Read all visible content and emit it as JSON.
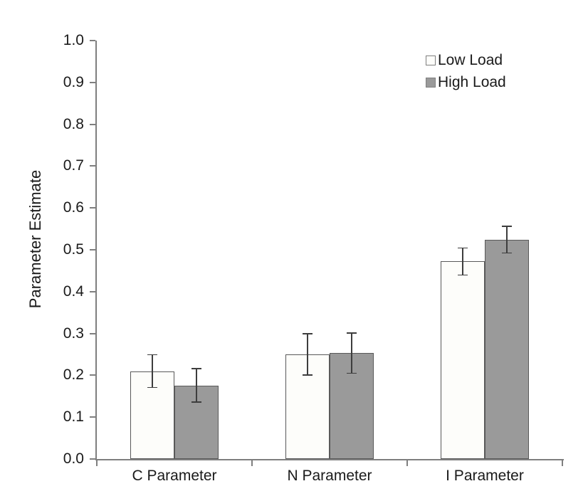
{
  "chart_data": {
    "type": "bar",
    "categories": [
      "C Parameter",
      "N Parameter",
      "I Parameter"
    ],
    "series": [
      {
        "name": "Low Load",
        "values": [
          0.21,
          0.25,
          0.472
        ],
        "errors": [
          0.039,
          0.049,
          0.032
        ],
        "fill": "#fdfdfa",
        "border": "#595959"
      },
      {
        "name": "High Load",
        "values": [
          0.176,
          0.253,
          0.524
        ],
        "errors": [
          0.04,
          0.048,
          0.032
        ],
        "fill": "#9a9a9a",
        "border": "#595959"
      }
    ],
    "ylabel": "Parameter Estimate",
    "xlabel": "",
    "ylim": [
      0.0,
      1.0
    ],
    "yticks": [
      0.0,
      0.1,
      0.2,
      0.3,
      0.4,
      0.5,
      0.6,
      0.7,
      0.8,
      0.9,
      1.0
    ],
    "ytick_labels": [
      "0.0",
      "0.1",
      "0.2",
      "0.3",
      "0.4",
      "0.5",
      "0.6",
      "0.7",
      "0.8",
      "0.9",
      "1.0"
    ],
    "grid": false,
    "legend_position": "top-right",
    "error_bars": true
  },
  "colors": {
    "axis": "#7f7f7f",
    "error_bar": "#3d3d3d",
    "text": "#1a1a1a",
    "background": "#ffffff"
  }
}
